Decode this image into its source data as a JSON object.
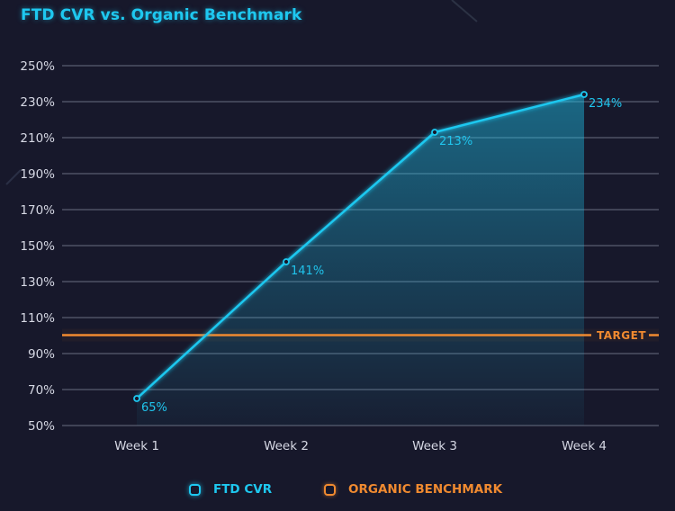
{
  "chart_data": {
    "type": "line",
    "title": "FTD CVR vs. Organic Benchmark",
    "xlabel": "",
    "ylabel": "",
    "categories": [
      "Week 1",
      "Week 2",
      "Week 3",
      "Week 4"
    ],
    "series": [
      {
        "name": "FTD CVR",
        "values": [
          65,
          141,
          213,
          234
        ],
        "labels": [
          "65%",
          "141%",
          "213%",
          "234%"
        ],
        "color": "#1ec8f0",
        "area_fill": true
      }
    ],
    "reference_lines": [
      {
        "name": "ORGANIC BENCHMARK",
        "value": 100,
        "label": "TARGET",
        "color": "#f08a30"
      }
    ],
    "y_ticks": [
      50,
      70,
      90,
      110,
      130,
      150,
      170,
      190,
      210,
      230,
      250
    ],
    "y_tick_labels": [
      "50%",
      "70%",
      "90%",
      "110%",
      "130%",
      "150%",
      "170%",
      "190%",
      "210%",
      "230%",
      "250%"
    ],
    "ylim": [
      50,
      250
    ],
    "grid": true,
    "legend": {
      "position": "bottom-center",
      "entries": [
        {
          "label": "FTD CVR",
          "color": "#1ec8f0"
        },
        {
          "label": "ORGANIC BENCHMARK",
          "color": "#f08a30"
        }
      ]
    }
  },
  "colors": {
    "background": "#17182b",
    "grid": "#5a5d70",
    "accent": "#1ec8f0",
    "benchmark": "#f08a30"
  }
}
